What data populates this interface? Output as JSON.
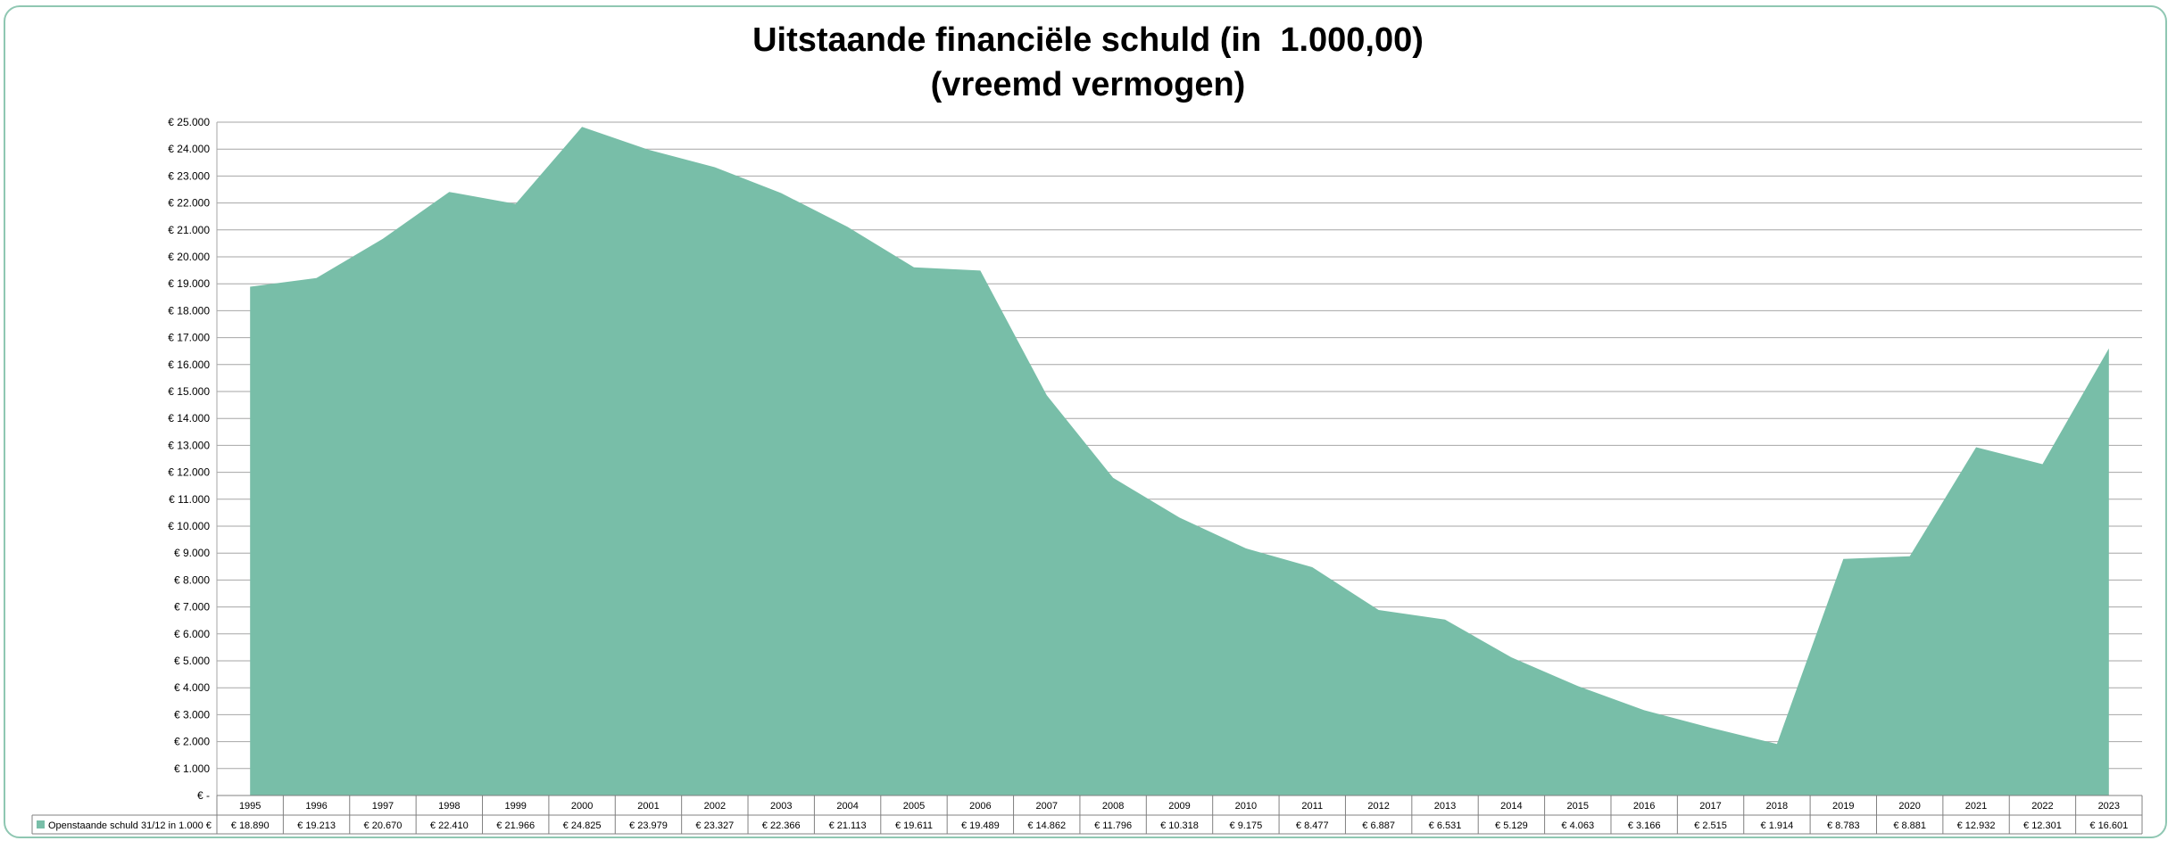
{
  "chart_data": {
    "type": "area",
    "title": "Uitstaande financiële schuld (in  1.000,00)",
    "subtitle": "(vreemd vermogen)",
    "xlabel": "",
    "ylabel": "",
    "ylim": [
      0,
      25000
    ],
    "yticks": [
      "€ -",
      "€ 1.000",
      "€ 2.000",
      "€ 3.000",
      "€ 4.000",
      "€ 5.000",
      "€ 6.000",
      "€ 7.000",
      "€ 8.000",
      "€ 9.000",
      "€ 10.000",
      "€ 11.000",
      "€ 12.000",
      "€ 13.000",
      "€ 14.000",
      "€ 15.000",
      "€ 16.000",
      "€ 17.000",
      "€ 18.000",
      "€ 19.000",
      "€ 20.000",
      "€ 21.000",
      "€ 22.000",
      "€ 23.000",
      "€ 24.000",
      "€ 25.000"
    ],
    "grid": true,
    "legend_position": "data-table",
    "categories": [
      "1995",
      "1996",
      "1997",
      "1998",
      "1999",
      "2000",
      "2001",
      "2002",
      "2003",
      "2004",
      "2005",
      "2006",
      "2007",
      "2008",
      "2009",
      "2010",
      "2011",
      "2012",
      "2013",
      "2014",
      "2015",
      "2016",
      "2017",
      "2018",
      "2019",
      "2020",
      "2021",
      "2022",
      "2023"
    ],
    "series": [
      {
        "name": "Openstaande schuld 31/12 in 1.000 €",
        "color": "#78bea8",
        "values": [
          18890,
          19213,
          20670,
          22410,
          21966,
          24825,
          23979,
          23327,
          22366,
          21113,
          19611,
          19489,
          14862,
          11796,
          10318,
          9175,
          8477,
          6887,
          6531,
          5129,
          4063,
          3166,
          2515,
          1914,
          8783,
          8881,
          12932,
          12301,
          16601
        ],
        "labels": [
          "€ 18.890",
          "€ 19.213",
          "€ 20.670",
          "€ 22.410",
          "€ 21.966",
          "€ 24.825",
          "€ 23.979",
          "€ 23.327",
          "€ 22.366",
          "€ 21.113",
          "€ 19.611",
          "€ 19.489",
          "€ 14.862",
          "€ 11.796",
          "€ 10.318",
          "€ 9.175",
          "€ 8.477",
          "€ 6.887",
          "€ 6.531",
          "€ 5.129",
          "€ 4.063",
          "€ 3.166",
          "€ 2.515",
          "€ 1.914",
          "€ 8.783",
          "€ 8.881",
          "€ 12.932",
          "€ 12.301",
          "€ 16.601"
        ]
      }
    ]
  }
}
